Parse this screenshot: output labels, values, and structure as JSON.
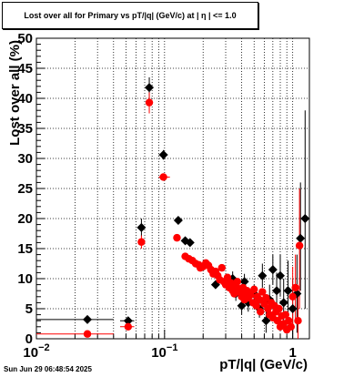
{
  "chart_data": {
    "type": "scatter",
    "title": "Lost over all for Primary vs pT/|q| (GeV/c) at |  η  | <= 1.0",
    "xlabel": "pT/|q| (GeV/c)",
    "ylabel": "Lost over all (%)",
    "x_scale": "log",
    "xlim": [
      0.01,
      1.35
    ],
    "ylim": [
      0,
      50
    ],
    "grid": true,
    "legend": "none",
    "y_ticks": [
      "0",
      "5",
      "10",
      "15",
      "20",
      "25",
      "30",
      "35",
      "40",
      "45",
      "50"
    ],
    "x_ticks": [
      {
        "value": 0.01,
        "base": "10",
        "exp": "−2"
      },
      {
        "value": 0.1,
        "base": "10",
        "exp": "−1"
      },
      {
        "value": 1,
        "base": "1",
        "exp": ""
      }
    ],
    "series": [
      {
        "color": "#000000",
        "marker": "diamond",
        "points": [
          {
            "x": 0.025,
            "y": 3.2,
            "xlo": 0.01,
            "xhi": 0.04,
            "ylo": 2.6,
            "yhi": 3.8
          },
          {
            "x": 0.052,
            "y": 3.0,
            "xlo": 0.045,
            "xhi": 0.058,
            "ylo": 2.4,
            "yhi": 3.6
          },
          {
            "x": 0.066,
            "y": 18.5,
            "xlo": 0.062,
            "xhi": 0.07,
            "ylo": 17.0,
            "yhi": 20.0
          },
          {
            "x": 0.076,
            "y": 41.8,
            "xlo": 0.073,
            "xhi": 0.08,
            "ylo": 40.0,
            "yhi": 43.5
          },
          {
            "x": 0.098,
            "y": 30.6,
            "xlo": 0.09,
            "xhi": 0.106,
            "ylo": 29.8,
            "yhi": 31.4
          },
          {
            "x": 0.128,
            "y": 19.7,
            "xlo": 0.12,
            "xhi": 0.136,
            "ylo": 19.3,
            "yhi": 20.1
          },
          {
            "x": 0.145,
            "y": 16.3,
            "ylo": 15.9,
            "yhi": 16.7
          },
          {
            "x": 0.158,
            "y": 16.0,
            "ylo": 15.6,
            "yhi": 16.4
          },
          {
            "x": 0.25,
            "y": 9.0,
            "ylo": 8.4,
            "yhi": 9.6
          },
          {
            "x": 0.3,
            "y": 9.5,
            "ylo": 8.6,
            "yhi": 10.4
          },
          {
            "x": 0.34,
            "y": 10.0,
            "ylo": 8.8,
            "yhi": 11.2
          },
          {
            "x": 0.36,
            "y": 7.5,
            "ylo": 6.3,
            "yhi": 8.7
          },
          {
            "x": 0.4,
            "y": 5.5,
            "ylo": 4.0,
            "yhi": 7.0
          },
          {
            "x": 0.42,
            "y": 9.5,
            "ylo": 8.2,
            "yhi": 10.8
          },
          {
            "x": 0.45,
            "y": 6.0,
            "ylo": 4.5,
            "yhi": 7.5
          },
          {
            "x": 0.5,
            "y": 7.5,
            "ylo": 6.0,
            "yhi": 9.0
          },
          {
            "x": 0.55,
            "y": 5.0,
            "ylo": 3.5,
            "yhi": 6.5
          },
          {
            "x": 0.58,
            "y": 10.5,
            "ylo": 8.5,
            "yhi": 12.5
          },
          {
            "x": 0.62,
            "y": 3.0,
            "ylo": 1.0,
            "yhi": 5.0
          },
          {
            "x": 0.66,
            "y": 6.5,
            "ylo": 4.0,
            "yhi": 9.0
          },
          {
            "x": 0.7,
            "y": 11.5,
            "ylo": 9.0,
            "yhi": 14.0
          },
          {
            "x": 0.75,
            "y": 8.0,
            "ylo": 5.0,
            "yhi": 11.0
          },
          {
            "x": 0.8,
            "y": 10.5,
            "ylo": 7.0,
            "yhi": 14.0
          },
          {
            "x": 0.85,
            "y": 6.0,
            "ylo": 2.0,
            "yhi": 10.0
          },
          {
            "x": 0.92,
            "y": 8.0,
            "ylo": 3.0,
            "yhi": 13.0
          },
          {
            "x": 1.0,
            "y": 5.0,
            "ylo": 0.0,
            "yhi": 10.0
          },
          {
            "x": 1.08,
            "y": 7.5,
            "ylo": 1.0,
            "yhi": 14.0
          },
          {
            "x": 1.15,
            "y": 16.7,
            "ylo": 8.0,
            "yhi": 26.0
          },
          {
            "x": 1.25,
            "y": 20.0,
            "ylo": 5.0,
            "yhi": 38.0
          }
        ]
      },
      {
        "color": "#ff0000",
        "marker": "circle",
        "points": [
          {
            "x": 0.025,
            "y": 0.8,
            "xlo": 0.01,
            "xhi": 0.04,
            "ylo": 0.5,
            "yhi": 1.1
          },
          {
            "x": 0.052,
            "y": 2.0,
            "xlo": 0.045,
            "xhi": 0.058,
            "ylo": 1.5,
            "yhi": 2.5
          },
          {
            "x": 0.066,
            "y": 16.1,
            "ylo": 15.0,
            "yhi": 17.2
          },
          {
            "x": 0.076,
            "y": 39.3,
            "ylo": 37.5,
            "yhi": 41.0
          },
          {
            "x": 0.098,
            "y": 26.9,
            "xlo": 0.09,
            "xhi": 0.11,
            "ylo": 26.5,
            "yhi": 27.3
          },
          {
            "x": 0.125,
            "y": 16.8,
            "xlo": 0.118,
            "xhi": 0.133,
            "ylo": 16.5,
            "yhi": 17.1
          },
          {
            "x": 0.145,
            "y": 13.7
          },
          {
            "x": 0.155,
            "y": 13.3
          },
          {
            "x": 0.165,
            "y": 13.0
          },
          {
            "x": 0.175,
            "y": 12.5
          },
          {
            "x": 0.185,
            "y": 12.3
          },
          {
            "x": 0.19,
            "y": 11.8
          },
          {
            "x": 0.2,
            "y": 12.0
          },
          {
            "x": 0.21,
            "y": 12.6
          },
          {
            "x": 0.22,
            "y": 12.2
          },
          {
            "x": 0.23,
            "y": 11.5
          },
          {
            "x": 0.24,
            "y": 10.8
          },
          {
            "x": 0.25,
            "y": 11.2
          },
          {
            "x": 0.26,
            "y": 10.5
          },
          {
            "x": 0.27,
            "y": 9.8
          },
          {
            "x": 0.28,
            "y": 11.8
          },
          {
            "x": 0.29,
            "y": 9.5
          },
          {
            "x": 0.3,
            "y": 9.0
          },
          {
            "x": 0.31,
            "y": 10.2
          },
          {
            "x": 0.32,
            "y": 8.5
          },
          {
            "x": 0.33,
            "y": 9.3
          },
          {
            "x": 0.34,
            "y": 8.0
          },
          {
            "x": 0.35,
            "y": 7.5
          },
          {
            "x": 0.36,
            "y": 8.8
          },
          {
            "x": 0.37,
            "y": 9.5
          },
          {
            "x": 0.38,
            "y": 7.8
          },
          {
            "x": 0.39,
            "y": 8.3
          },
          {
            "x": 0.4,
            "y": 7.0
          },
          {
            "x": 0.41,
            "y": 8.5
          },
          {
            "x": 0.42,
            "y": 6.5
          },
          {
            "x": 0.43,
            "y": 7.5
          },
          {
            "x": 0.44,
            "y": 8.0
          },
          {
            "x": 0.45,
            "y": 6.8
          },
          {
            "x": 0.47,
            "y": 7.3
          },
          {
            "x": 0.49,
            "y": 6.0
          },
          {
            "x": 0.5,
            "y": 8.2
          },
          {
            "x": 0.52,
            "y": 5.5
          },
          {
            "x": 0.53,
            "y": 7.0
          },
          {
            "x": 0.55,
            "y": 6.5
          },
          {
            "x": 0.56,
            "y": 4.5
          },
          {
            "x": 0.58,
            "y": 7.8
          },
          {
            "x": 0.6,
            "y": 5.8
          },
          {
            "x": 0.62,
            "y": 6.8
          },
          {
            "x": 0.64,
            "y": 5.0
          },
          {
            "x": 0.66,
            "y": 4.0
          },
          {
            "x": 0.68,
            "y": 6.0
          },
          {
            "x": 0.7,
            "y": 3.5
          },
          {
            "x": 0.72,
            "y": 5.5
          },
          {
            "x": 0.74,
            "y": 4.5
          },
          {
            "x": 0.76,
            "y": 3.0
          },
          {
            "x": 0.78,
            "y": 5.0
          },
          {
            "x": 0.8,
            "y": 2.0
          },
          {
            "x": 0.82,
            "y": 3.8
          },
          {
            "x": 0.85,
            "y": 2.5
          },
          {
            "x": 0.88,
            "y": 4.0
          },
          {
            "x": 0.9,
            "y": 1.5
          },
          {
            "x": 0.93,
            "y": 3.0
          },
          {
            "x": 0.97,
            "y": 2.0
          },
          {
            "x": 1.0,
            "y": 7.0,
            "ylo": 2.0,
            "yhi": 12.0
          },
          {
            "x": 1.05,
            "y": 8.5,
            "ylo": 3.0,
            "yhi": 14.0
          },
          {
            "x": 1.1,
            "y": 3.0,
            "ylo": 0.0,
            "yhi": 8.0
          },
          {
            "x": 1.13,
            "y": 15.5,
            "ylo": 5.0,
            "yhi": 25.0
          }
        ]
      }
    ]
  },
  "timestamp": "Sun Jun 29 06:48:54 2025"
}
